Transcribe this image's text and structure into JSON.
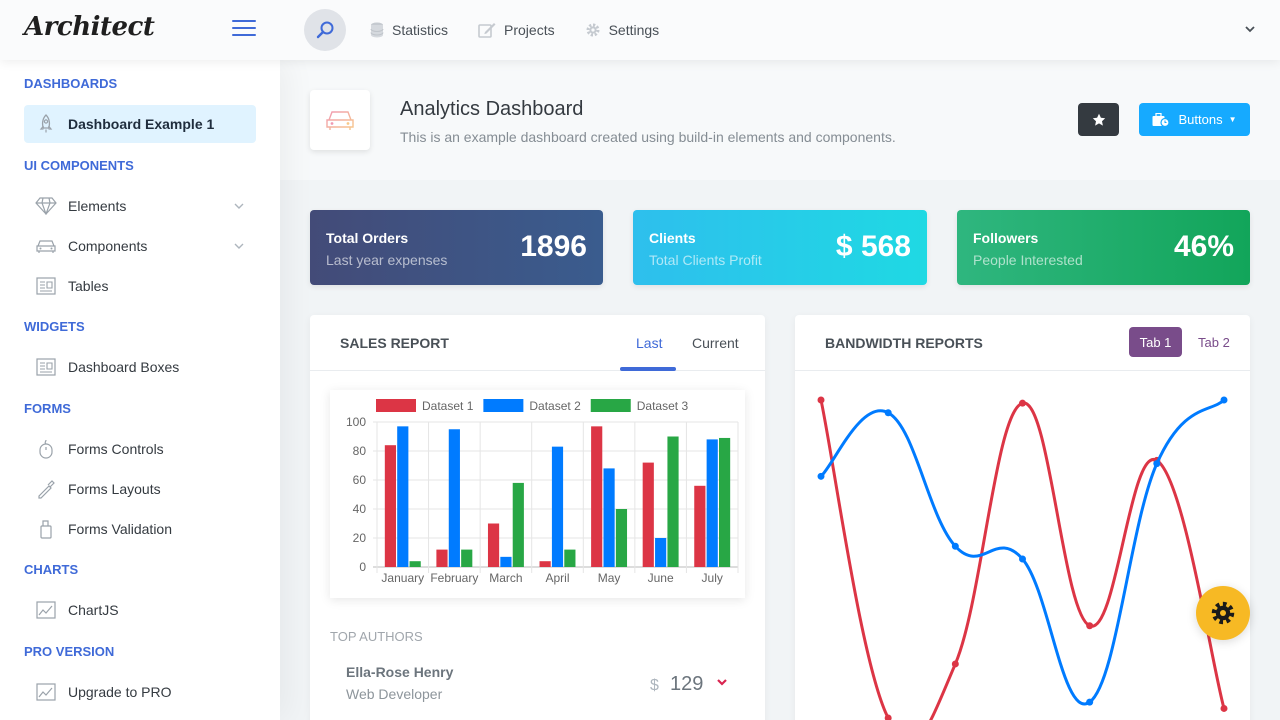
{
  "header": {
    "logo": "Architect",
    "nav": [
      {
        "label": "Statistics",
        "icon": "database-icon"
      },
      {
        "label": "Projects",
        "icon": "edit-icon"
      },
      {
        "label": "Settings",
        "icon": "gear-icon"
      }
    ]
  },
  "sidebar": {
    "sections": {
      "dashboards": "Dashboards",
      "ui_components": "UI Components",
      "widgets": "Widgets",
      "forms": "Forms",
      "charts": "Charts",
      "pro": "PRO Version"
    },
    "items": {
      "dashboard_example": "Dashboard Example 1",
      "elements": "Elements",
      "components": "Components",
      "tables": "Tables",
      "dashboard_boxes": "Dashboard Boxes",
      "forms_controls": "Forms Controls",
      "forms_layouts": "Forms Layouts",
      "forms_validation": "Forms Validation",
      "chartjs": "ChartJS",
      "upgrade": "Upgrade to PRO"
    }
  },
  "page": {
    "title": "Analytics Dashboard",
    "subtitle": "This is an example dashboard created using build-in elements and components.",
    "buttons_label": "Buttons"
  },
  "stats": [
    {
      "title": "Total Orders",
      "subtitle": "Last year expenses",
      "value": "1896"
    },
    {
      "title": "Clients",
      "subtitle": "Total Clients Profit",
      "value": "$ 568"
    },
    {
      "title": "Followers",
      "subtitle": "People Interested",
      "value": "46%"
    }
  ],
  "sales": {
    "title": "Sales Report",
    "tabs": [
      "Last",
      "Current"
    ],
    "active_tab": "Last"
  },
  "bandwidth": {
    "title": "Bandwidth Reports",
    "tabs": [
      "Tab 1",
      "Tab 2"
    ],
    "active_tab": "Tab 1"
  },
  "authors": {
    "heading": "Top Authors",
    "rows": [
      {
        "name": "Ella-Rose Henry",
        "role": "Web Developer",
        "currency": "$",
        "value": "129"
      }
    ]
  },
  "colors": {
    "accent": "#3f6ad8",
    "info": "#16aaff",
    "dark": "#343a40",
    "warning": "#f7b924",
    "card_dark": "#3a4a78",
    "card_cyan": "#25c4e6",
    "card_green": "#1fb26e"
  },
  "chart_data": [
    {
      "type": "bar",
      "categories": [
        "January",
        "February",
        "March",
        "April",
        "May",
        "June",
        "July"
      ],
      "series": [
        {
          "name": "Dataset 1",
          "color": "#dc3545",
          "values": [
            84,
            12,
            30,
            4,
            97,
            72,
            56
          ]
        },
        {
          "name": "Dataset 2",
          "color": "#007bff",
          "values": [
            97,
            95,
            7,
            83,
            68,
            20,
            88
          ]
        },
        {
          "name": "Dataset 3",
          "color": "#28a745",
          "values": [
            4,
            12,
            58,
            12,
            40,
            90,
            89
          ]
        }
      ],
      "yticks": [
        0,
        20,
        40,
        60,
        80,
        100
      ],
      "ylim": [
        0,
        100
      ],
      "legend": "top",
      "grid": true
    },
    {
      "type": "line",
      "points_per_series": 7,
      "series": [
        {
          "color": "#dc3545",
          "values": [
            100,
            0,
            17,
            99,
            29,
            81,
            3
          ]
        },
        {
          "color": "#007bff",
          "values": [
            76,
            96,
            54,
            50,
            5,
            80,
            100
          ]
        }
      ],
      "ylim": [
        0,
        100
      ],
      "smooth": true
    }
  ]
}
